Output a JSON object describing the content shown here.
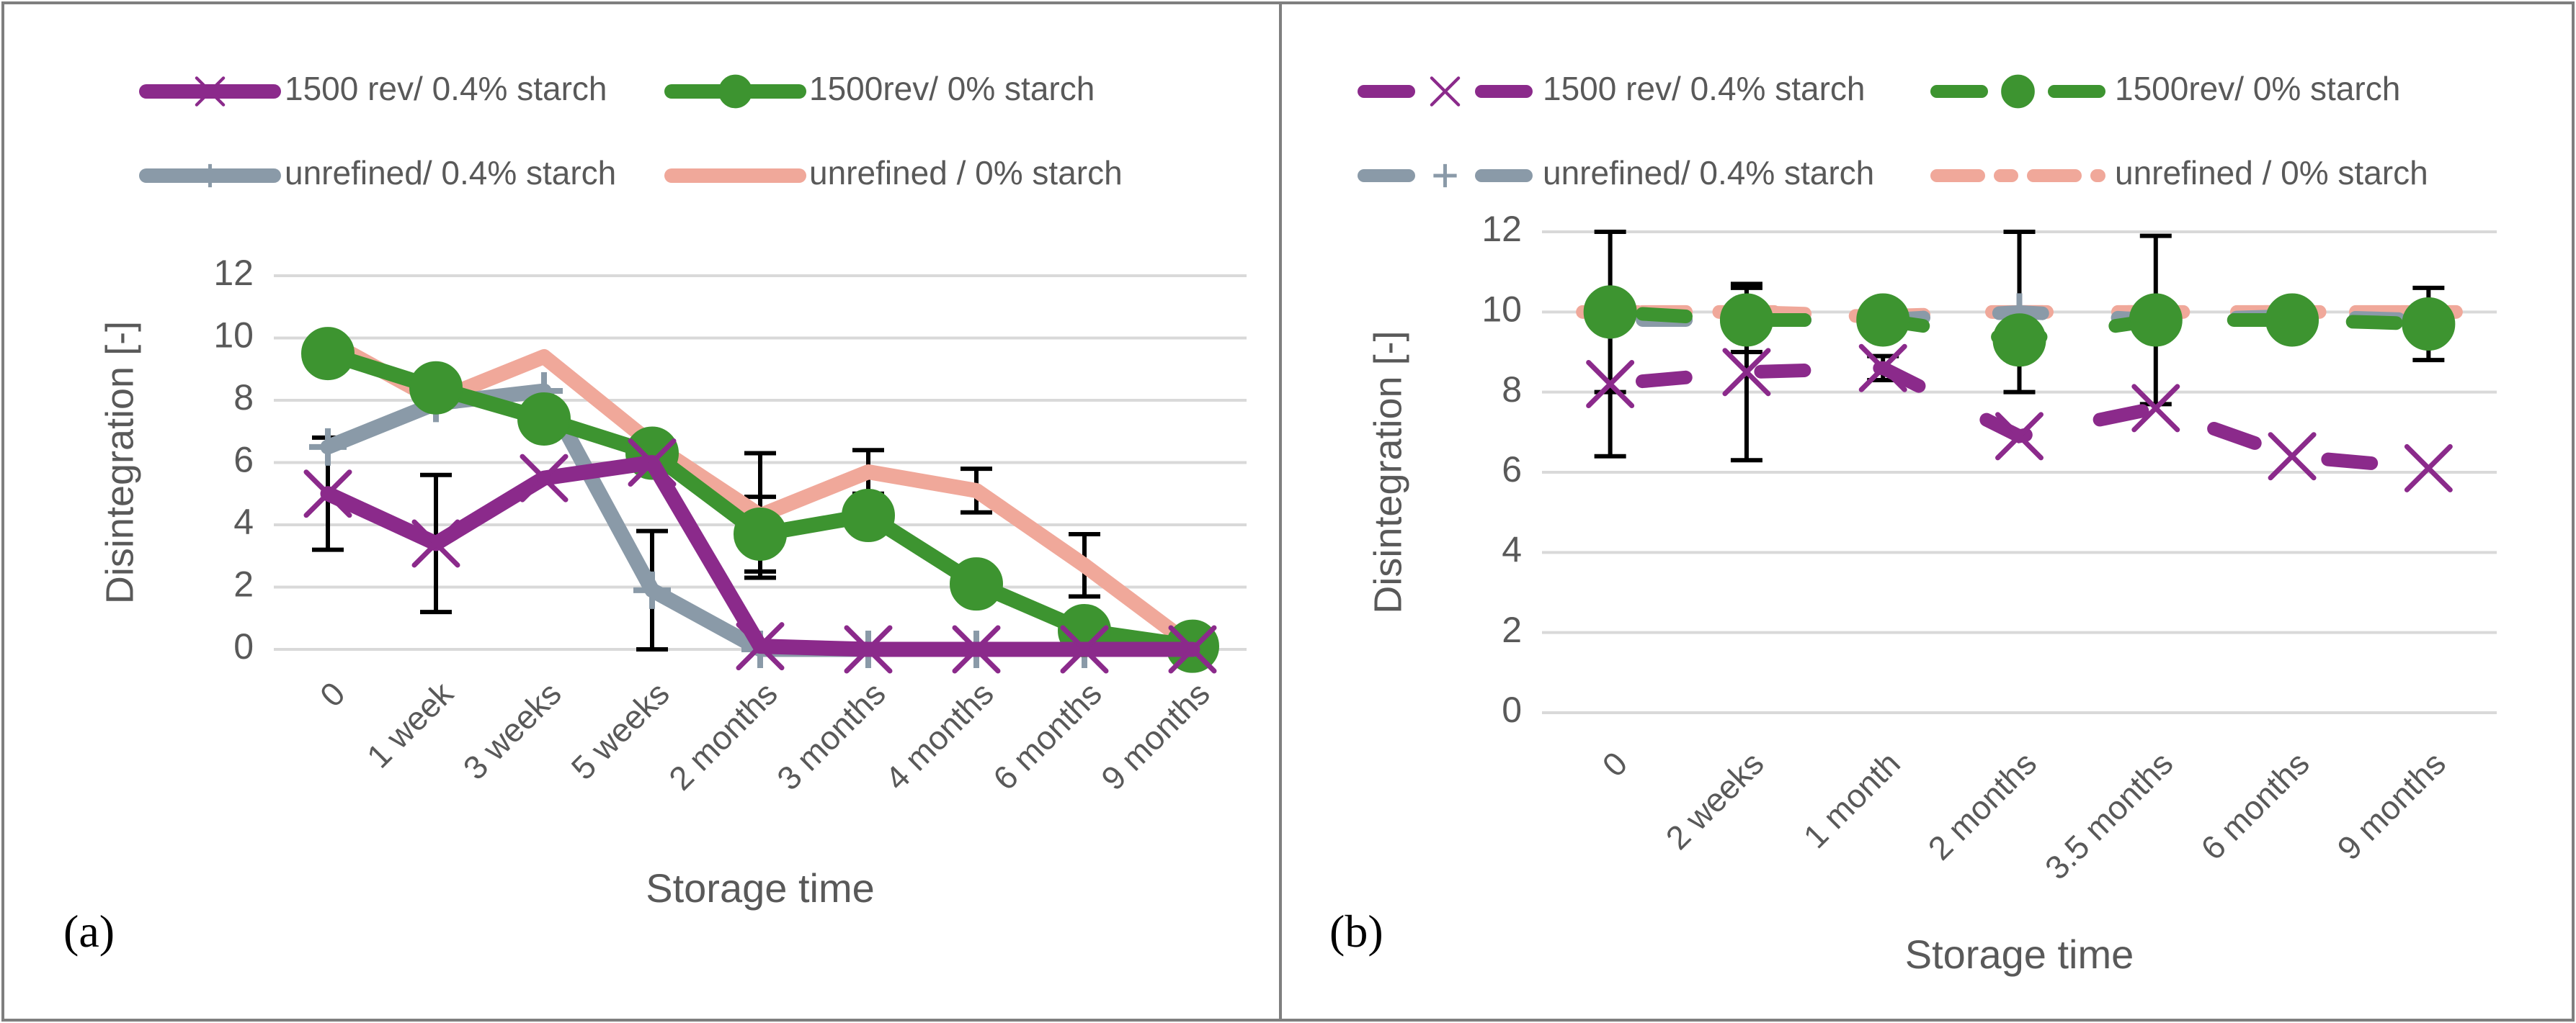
{
  "colors": {
    "s1": "#8B2A8B",
    "s2": "#3D9430",
    "s3": "#8A9AA8",
    "s4": "#F0A89A",
    "grid": "#d9d9d9",
    "text": "#595959",
    "error": "#000000",
    "border": "#7f7f7f"
  },
  "chart_data": [
    {
      "panel": "(a)",
      "type": "line",
      "categories": [
        "0",
        "1 week",
        "3 weeks",
        "5 weeks",
        "2 months",
        "3 months",
        "4 months",
        "6 months",
        "9 months"
      ],
      "ylabel": "Disintegration [-]",
      "xlabel": "Storage time",
      "ylim": [
        0,
        12
      ],
      "yticks": [
        "0",
        "2",
        "4",
        "6",
        "8",
        "10",
        "12"
      ],
      "legend_style": "solid",
      "series": [
        {
          "name": "1500 rev/ 0.4% starch",
          "marker": "x",
          "values": [
            5.0,
            3.4,
            5.5,
            6.0,
            0.1,
            0.0,
            0.0,
            0.0,
            0.0
          ],
          "err": [
            1.8,
            2.2,
            0,
            0,
            0,
            0,
            0,
            0,
            0
          ]
        },
        {
          "name": "1500rev/ 0% starch",
          "marker": "circle",
          "values": [
            9.5,
            8.4,
            7.4,
            6.3,
            3.7,
            4.3,
            2.1,
            0.6,
            0.1
          ],
          "err": [
            0,
            0,
            0,
            0,
            1.2,
            0,
            0,
            0,
            0
          ]
        },
        {
          "name": "unrefined/ 0.4% starch",
          "marker": "plus",
          "values": [
            6.5,
            7.9,
            8.3,
            1.9,
            0.0,
            0.0,
            0.0,
            0.0,
            0.0
          ],
          "err": [
            0,
            0,
            0,
            1.9,
            0,
            0,
            0,
            0,
            0
          ]
        },
        {
          "name": "unrefined / 0% starch",
          "marker": "none",
          "values": [
            9.9,
            8.0,
            9.4,
            6.6,
            4.3,
            5.7,
            5.1,
            2.7,
            0.1
          ],
          "err": [
            0,
            0,
            0,
            0,
            2.0,
            0.7,
            0.7,
            1.0,
            0
          ]
        }
      ]
    },
    {
      "panel": "(b)",
      "type": "line",
      "categories": [
        "0",
        "2 weeks",
        "1 month",
        "2 months",
        "3.5 months",
        "6 months",
        "9 months"
      ],
      "ylabel": "Disintegration [-]",
      "xlabel": "Storage time",
      "ylim": [
        0,
        12
      ],
      "yticks": [
        "0",
        "2",
        "4",
        "6",
        "8",
        "10",
        "12"
      ],
      "legend_style": "dashed",
      "series": [
        {
          "name": "1500 rev/ 0.4% starch",
          "marker": "x",
          "values": [
            8.2,
            8.5,
            8.6,
            6.9,
            7.6,
            6.4,
            6.1
          ],
          "err": [
            1.8,
            2.2,
            0.3,
            0,
            0,
            0,
            0
          ]
        },
        {
          "name": "1500rev/ 0% starch",
          "marker": "circle",
          "values": [
            10.0,
            9.8,
            9.8,
            9.3,
            9.8,
            9.8,
            9.7
          ],
          "err": [
            0,
            0.8,
            0,
            0,
            0,
            0,
            0.9
          ]
        },
        {
          "name": "unrefined/ 0.4% starch",
          "marker": "plus",
          "values": [
            9.8,
            9.8,
            9.8,
            10.0,
            9.8,
            9.9,
            9.8
          ],
          "err": [
            0,
            0,
            0,
            2.0,
            2.1,
            0,
            0
          ]
        },
        {
          "name": "unrefined / 0% starch",
          "marker": "none",
          "values": [
            10.0,
            10.0,
            9.9,
            10.0,
            10.0,
            10.0,
            10.0
          ],
          "err": [
            2.0,
            0,
            0,
            0,
            0,
            0,
            0
          ]
        }
      ]
    }
  ]
}
